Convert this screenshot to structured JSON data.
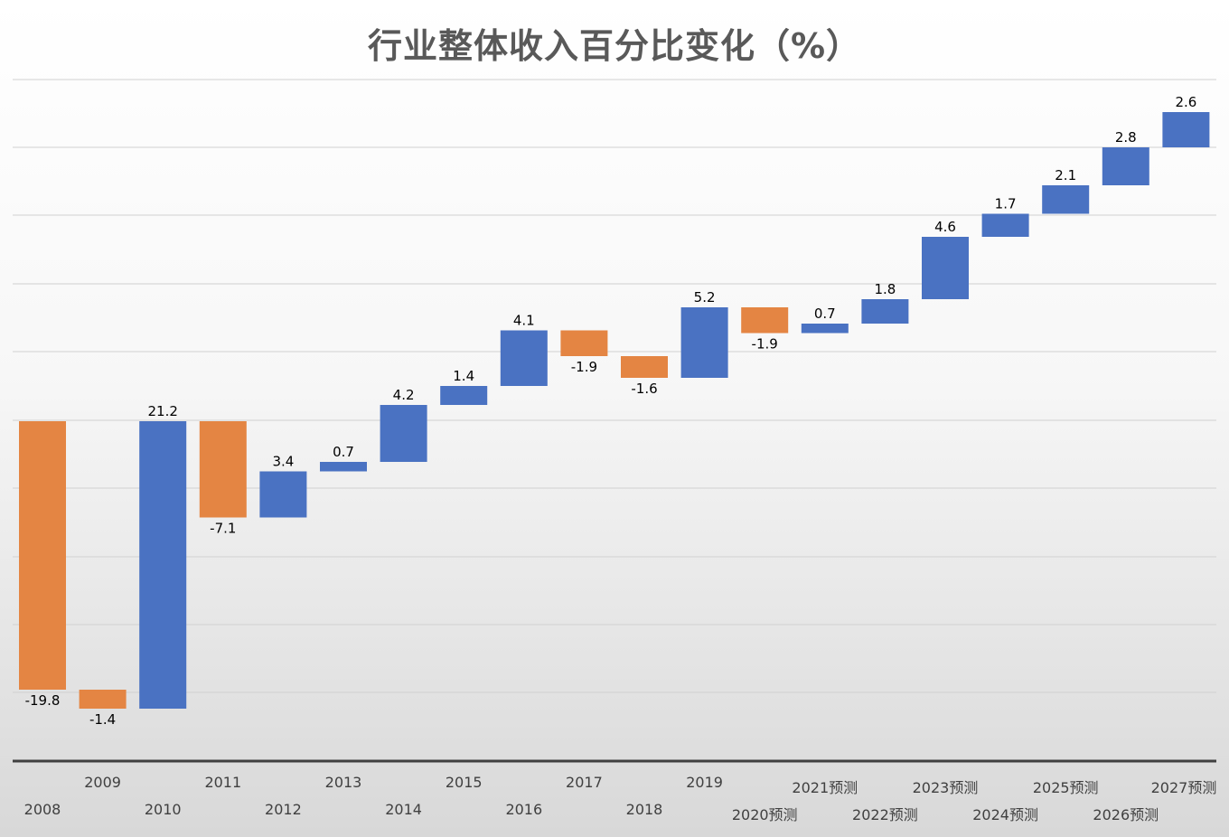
{
  "chart_data": {
    "type": "bar",
    "subtype": "waterfall",
    "title": "行业整体收入百分比变化（%）",
    "categories": [
      "2008",
      "2009",
      "2010",
      "2011",
      "2012",
      "2013",
      "2014",
      "2015",
      "2016",
      "2017",
      "2018",
      "2019",
      "2020预测",
      "2021预测",
      "2022预测",
      "2023预测",
      "2024预测",
      "2025预测",
      "2026预测",
      "2027预测"
    ],
    "values": [
      -19.8,
      -1.4,
      21.2,
      -7.1,
      3.4,
      0.7,
      4.2,
      1.4,
      4.1,
      -1.9,
      -1.6,
      5.2,
      -1.9,
      0.7,
      1.8,
      4.6,
      1.7,
      2.1,
      2.8,
      2.6
    ],
    "labels": [
      "-19.8",
      "-1.4",
      "21.2",
      "-7.1",
      "3.4",
      "0.7",
      "4.2",
      "1.4",
      "4.1",
      "-1.9",
      "-1.6",
      "5.2",
      "-1.9",
      "0.7",
      "1.8",
      "4.6",
      "1.7",
      "2.1",
      "2.8",
      "2.6"
    ],
    "colors": {
      "increase": "#4A72C2",
      "decrease": "#E48543"
    },
    "grid": true,
    "axis_value_labels_shown": false
  }
}
